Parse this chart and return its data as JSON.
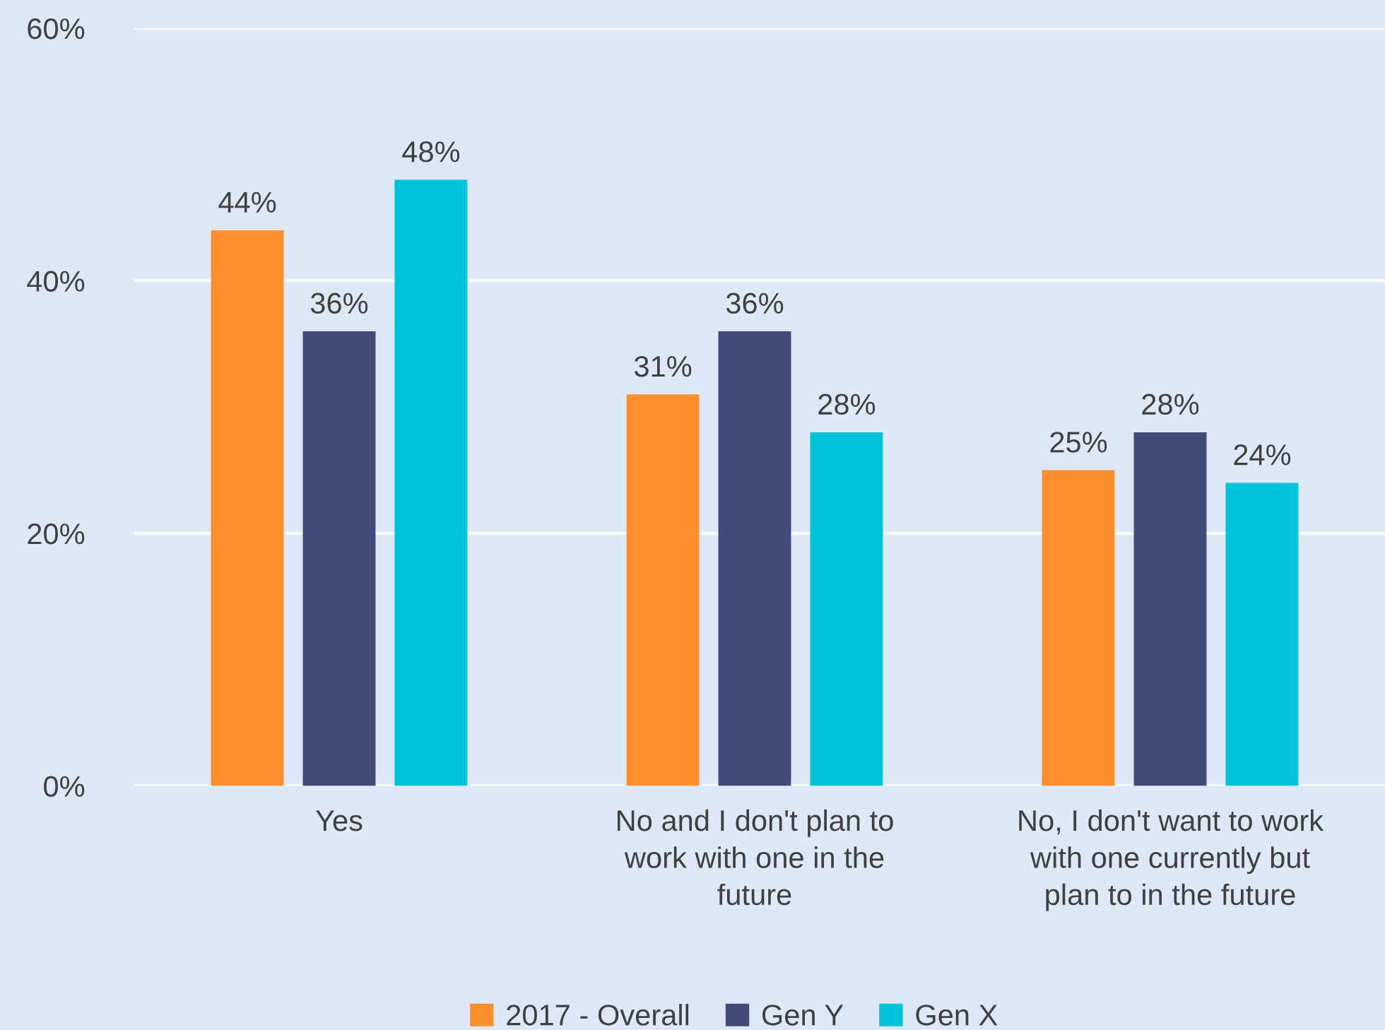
{
  "chart_data": {
    "type": "bar",
    "categories": [
      "Yes",
      "No and I don't plan to\nwork with one in the\nfuture",
      "No, I don't want to work\nwith one currently but\nplan to in the future"
    ],
    "series": [
      {
        "name": "2017 - Overall",
        "color": "#fd8f2f",
        "values": [
          44,
          31,
          25
        ],
        "value_labels": [
          "44%",
          "31%",
          "25%"
        ]
      },
      {
        "name": "Gen Y",
        "color": "#434b7a",
        "values": [
          36,
          36,
          28
        ],
        "value_labels": [
          "36%",
          "36%",
          "28%"
        ]
      },
      {
        "name": "Gen X",
        "color": "#00c3da",
        "values": [
          48,
          28,
          24
        ],
        "value_labels": [
          "48%",
          "28%",
          "24%"
        ]
      }
    ],
    "ylim": [
      0,
      60
    ],
    "yticks": [
      {
        "value": 0,
        "label": "0%"
      },
      {
        "value": 20,
        "label": "20%"
      },
      {
        "value": 40,
        "label": "40%"
      },
      {
        "value": 60,
        "label": "60%"
      }
    ],
    "grid": "y",
    "legend": "bottom"
  }
}
